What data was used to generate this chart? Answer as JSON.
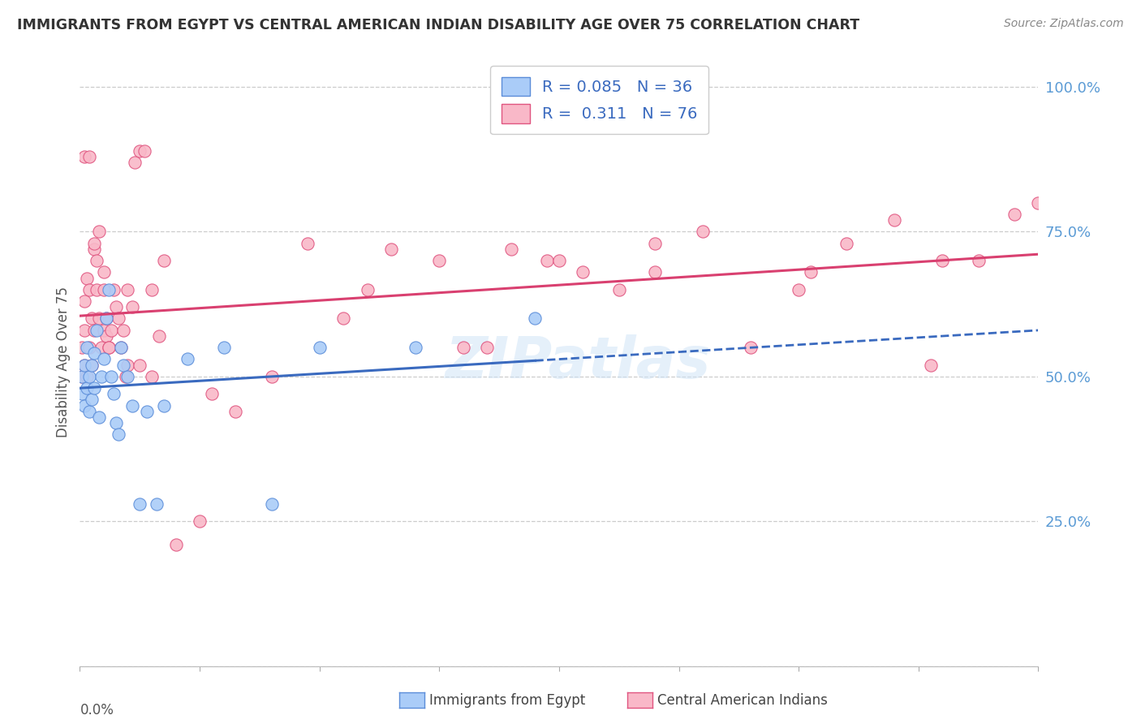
{
  "title": "IMMIGRANTS FROM EGYPT VS CENTRAL AMERICAN INDIAN DISABILITY AGE OVER 75 CORRELATION CHART",
  "source": "Source: ZipAtlas.com",
  "ylabel": "Disability Age Over 75",
  "right_yticklabels": [
    "",
    "25.0%",
    "50.0%",
    "75.0%",
    "100.0%"
  ],
  "right_ytick_vals": [
    0.0,
    0.25,
    0.5,
    0.75,
    1.0
  ],
  "watermark": "ZIPatlas",
  "legend_egypt_R": "0.085",
  "legend_egypt_N": "36",
  "legend_indian_R": "0.311",
  "legend_indian_N": "76",
  "egypt_color": "#aaccf8",
  "indian_color": "#f9b8c8",
  "egypt_edge_color": "#5b8dd9",
  "indian_edge_color": "#e05580",
  "egypt_line_color": "#3a6abf",
  "indian_line_color": "#d94070",
  "egypt_scatter": {
    "x": [
      0.001,
      0.001,
      0.002,
      0.002,
      0.003,
      0.003,
      0.004,
      0.004,
      0.005,
      0.005,
      0.006,
      0.006,
      0.007,
      0.008,
      0.009,
      0.01,
      0.011,
      0.012,
      0.013,
      0.014,
      0.015,
      0.016,
      0.017,
      0.018,
      0.02,
      0.022,
      0.025,
      0.028,
      0.032,
      0.035,
      0.045,
      0.06,
      0.08,
      0.1,
      0.14,
      0.19
    ],
    "y": [
      0.5,
      0.47,
      0.52,
      0.45,
      0.55,
      0.48,
      0.5,
      0.44,
      0.52,
      0.46,
      0.54,
      0.48,
      0.58,
      0.43,
      0.5,
      0.53,
      0.6,
      0.65,
      0.5,
      0.47,
      0.42,
      0.4,
      0.55,
      0.52,
      0.5,
      0.45,
      0.28,
      0.44,
      0.28,
      0.45,
      0.53,
      0.55,
      0.28,
      0.55,
      0.55,
      0.6
    ]
  },
  "indian_scatter": {
    "x": [
      0.001,
      0.001,
      0.002,
      0.002,
      0.002,
      0.003,
      0.003,
      0.004,
      0.004,
      0.005,
      0.005,
      0.006,
      0.006,
      0.007,
      0.007,
      0.008,
      0.009,
      0.01,
      0.01,
      0.011,
      0.011,
      0.012,
      0.013,
      0.014,
      0.015,
      0.016,
      0.017,
      0.018,
      0.019,
      0.02,
      0.022,
      0.023,
      0.025,
      0.027,
      0.03,
      0.033,
      0.035,
      0.04,
      0.05,
      0.055,
      0.065,
      0.08,
      0.095,
      0.11,
      0.13,
      0.15,
      0.17,
      0.18,
      0.195,
      0.21,
      0.225,
      0.24,
      0.26,
      0.28,
      0.305,
      0.32,
      0.34,
      0.355,
      0.375,
      0.39,
      0.002,
      0.004,
      0.006,
      0.008,
      0.01,
      0.012,
      0.02,
      0.025,
      0.03,
      0.12,
      0.16,
      0.2,
      0.24,
      0.3,
      0.36,
      0.4
    ],
    "y": [
      0.5,
      0.55,
      0.58,
      0.63,
      0.52,
      0.5,
      0.67,
      0.55,
      0.65,
      0.52,
      0.6,
      0.72,
      0.58,
      0.65,
      0.7,
      0.6,
      0.55,
      0.58,
      0.68,
      0.6,
      0.57,
      0.55,
      0.58,
      0.65,
      0.62,
      0.6,
      0.55,
      0.58,
      0.5,
      0.52,
      0.62,
      0.87,
      0.89,
      0.89,
      0.65,
      0.57,
      0.7,
      0.21,
      0.25,
      0.47,
      0.44,
      0.5,
      0.73,
      0.6,
      0.72,
      0.7,
      0.55,
      0.72,
      0.7,
      0.68,
      0.65,
      0.73,
      0.75,
      0.55,
      0.68,
      0.73,
      0.77,
      0.52,
      0.7,
      0.78,
      0.88,
      0.88,
      0.73,
      0.75,
      0.65,
      0.55,
      0.65,
      0.52,
      0.5,
      0.65,
      0.55,
      0.7,
      0.68,
      0.65,
      0.7,
      0.8
    ]
  },
  "xlim": [
    0.0,
    0.4
  ],
  "ylim": [
    0.0,
    1.05
  ],
  "figsize": [
    14.06,
    8.92
  ],
  "dpi": 100
}
